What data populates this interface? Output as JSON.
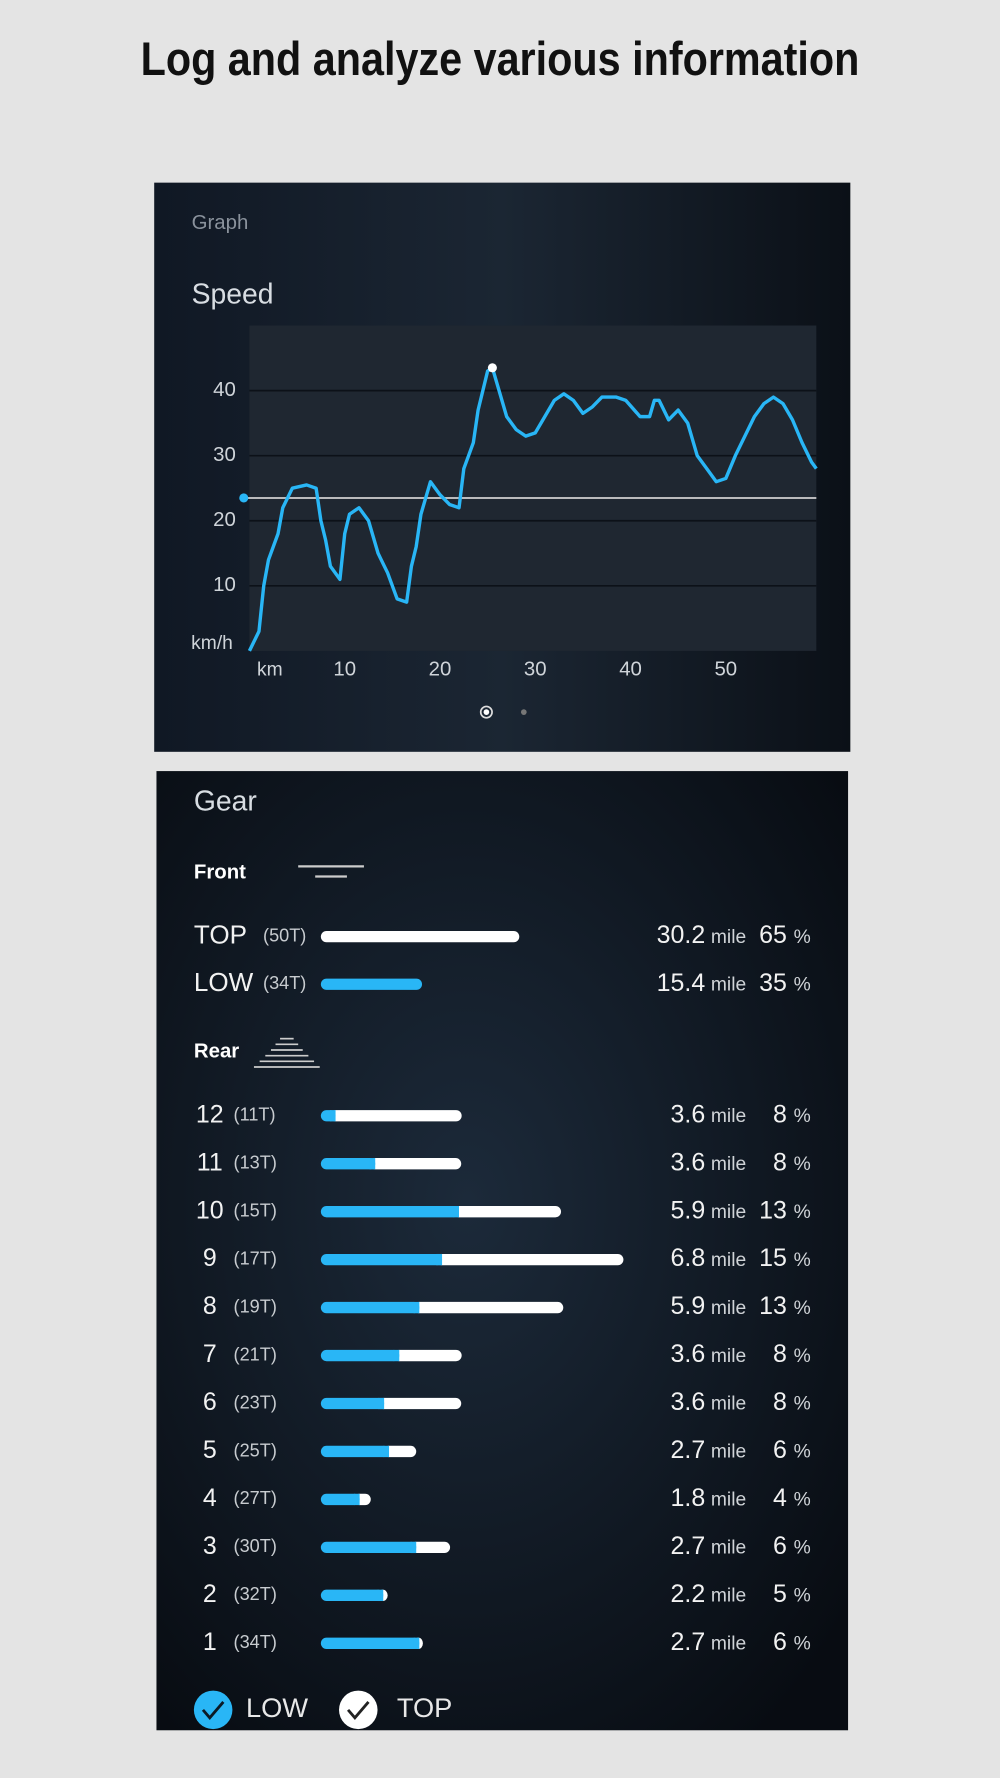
{
  "header": {
    "title": "Log and analyze various information"
  },
  "graph_panel": {
    "label": "Graph"
  },
  "chart_data": {
    "type": "line",
    "title": "Speed",
    "y_label": "km/h",
    "x_label": "km",
    "color": "#29b6f6",
    "x": [
      0,
      1,
      1.5,
      2,
      3,
      3.5,
      4.5,
      6,
      7,
      7.5,
      8,
      8.5,
      9.5,
      10,
      10.5,
      11.5,
      12.5,
      13.5,
      14.5,
      15.5,
      16.5,
      17,
      17.5,
      18,
      19,
      20,
      21,
      22,
      22.5,
      23.5,
      24,
      25,
      25.5,
      26,
      27,
      28,
      29,
      30,
      31,
      32,
      33,
      34,
      35,
      36,
      37,
      38.5,
      39.5,
      41,
      42,
      42.5,
      43,
      44,
      45,
      46,
      47,
      48,
      49,
      50,
      51,
      52,
      53,
      54,
      55,
      56,
      57,
      58,
      59,
      59.5
    ],
    "values": [
      0,
      3,
      10,
      14,
      18,
      22,
      25,
      25.5,
      25,
      20,
      17,
      13,
      11,
      18,
      21,
      22,
      20,
      15,
      12,
      8,
      7.5,
      13,
      16,
      21,
      26,
      24,
      22.5,
      22,
      28,
      32,
      37,
      43,
      43.5,
      41,
      36,
      34,
      33,
      33.5,
      36,
      38.5,
      39.5,
      38.5,
      36.5,
      37.5,
      39,
      39,
      38.5,
      36,
      36,
      38.5,
      38.5,
      35.5,
      37,
      35,
      30,
      28,
      26,
      26.5,
      30,
      33,
      36,
      38,
      39,
      38,
      35.5,
      32,
      29,
      28
    ],
    "reference_line": 23.5,
    "reference_color": "#d0d0d0",
    "xlim": [
      0,
      59.5
    ],
    "ylim": [
      0,
      50
    ],
    "xticks": [
      10,
      20,
      30,
      40,
      50
    ],
    "yticks": [
      10,
      20,
      30,
      40
    ],
    "grid": true
  },
  "gear": {
    "title": "Gear",
    "units": {
      "mile": "mile",
      "percent": "%"
    },
    "colors": {
      "low": "#29b6f6",
      "top": "#ffffff"
    },
    "front": {
      "label": "Front",
      "rows": [
        {
          "name": "TOP",
          "teeth": "(50T)",
          "mile": 30.2,
          "percent": 65,
          "color": "#ffffff"
        },
        {
          "name": "LOW",
          "teeth": "(34T)",
          "mile": 15.4,
          "percent": 35,
          "color": "#29b6f6"
        }
      ]
    },
    "rear": {
      "label": "Rear",
      "rows": [
        {
          "gear": 12,
          "teeth": "(11T)",
          "low_mile": 0.33,
          "top_mile": 2.83,
          "mile": 3.6,
          "percent": 8
        },
        {
          "gear": 11,
          "teeth": "(13T)",
          "low_mile": 1.22,
          "top_mile": 1.93,
          "mile": 3.6,
          "percent": 8
        },
        {
          "gear": 10,
          "teeth": "(15T)",
          "low_mile": 3.1,
          "top_mile": 2.29,
          "mile": 5.9,
          "percent": 13
        },
        {
          "gear": 9,
          "teeth": "(17T)",
          "low_mile": 2.72,
          "top_mile": 4.07,
          "mile": 6.8,
          "percent": 15
        },
        {
          "gear": 8,
          "teeth": "(19T)",
          "low_mile": 2.21,
          "top_mile": 3.23,
          "mile": 5.9,
          "percent": 13
        },
        {
          "gear": 7,
          "teeth": "(21T)",
          "low_mile": 1.76,
          "top_mile": 1.4,
          "mile": 3.6,
          "percent": 8
        },
        {
          "gear": 6,
          "teeth": "(23T)",
          "low_mile": 1.42,
          "top_mile": 1.73,
          "mile": 3.6,
          "percent": 8
        },
        {
          "gear": 5,
          "teeth": "(25T)",
          "low_mile": 1.53,
          "top_mile": 0.61,
          "mile": 2.7,
          "percent": 6
        },
        {
          "gear": 4,
          "teeth": "(27T)",
          "low_mile": 0.87,
          "top_mile": 0.25,
          "mile": 1.8,
          "percent": 4
        },
        {
          "gear": 3,
          "teeth": "(30T)",
          "low_mile": 2.14,
          "top_mile": 0.76,
          "mile": 2.7,
          "percent": 6
        },
        {
          "gear": 2,
          "teeth": "(32T)",
          "low_mile": 1.4,
          "top_mile": 0.1,
          "mile": 2.2,
          "percent": 5
        },
        {
          "gear": 1,
          "teeth": "(34T)",
          "low_mile": 2.21,
          "top_mile": 0.08,
          "mile": 2.7,
          "percent": 6
        }
      ]
    },
    "legend": [
      "LOW",
      "TOP"
    ]
  }
}
